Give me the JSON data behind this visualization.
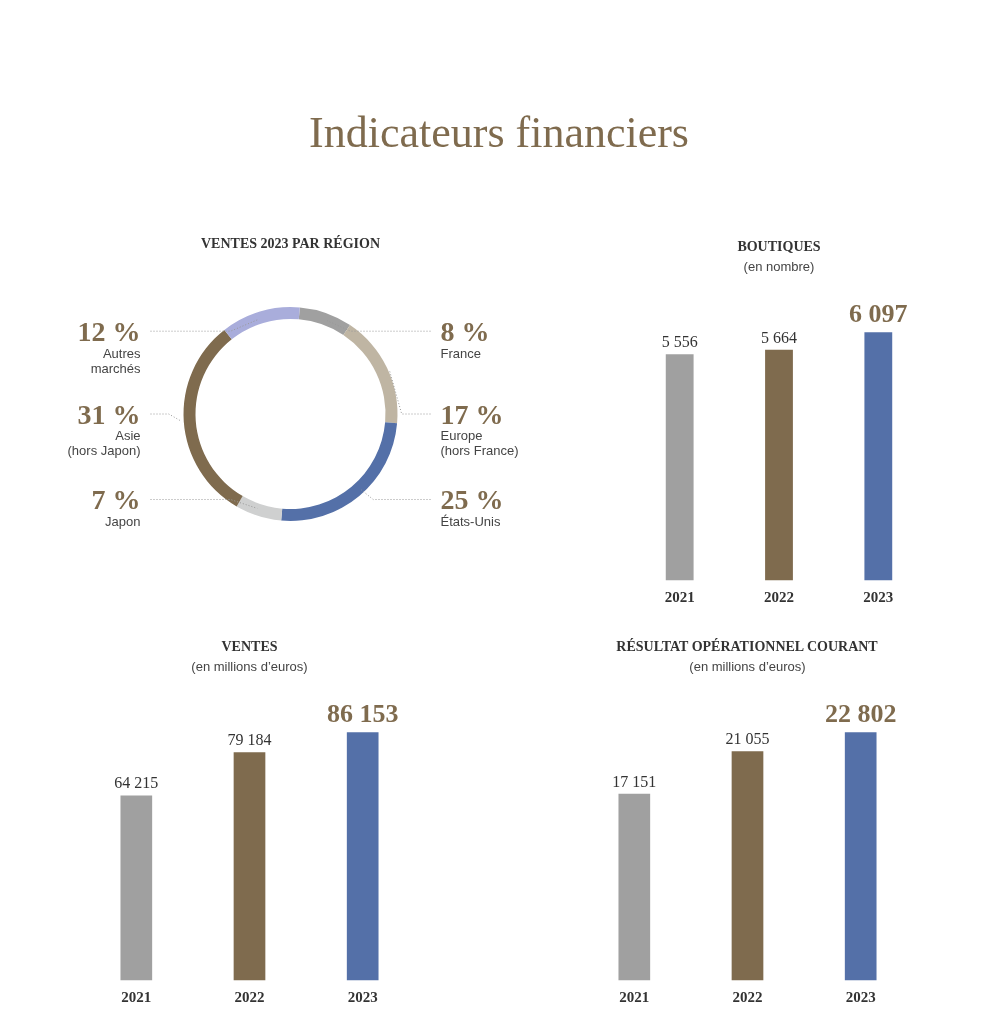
{
  "chart_data": [
    {
      "type": "other",
      "title": "Indicateurs financiers"
    },
    {
      "type": "donut",
      "title": "VENTES 2023 PAR RÉGION",
      "categories": [
        "France",
        "Europe\n(hors France)",
        "États-Unis",
        "Japon",
        "Asie\n(hors Japon)",
        "Autres\nmarchés"
      ],
      "values": [
        8,
        17,
        25,
        7,
        31,
        12
      ],
      "colors": [
        "#a0a0a0",
        "#bfb5a3",
        "#5470a8",
        "#cfd0d0",
        "#7f6b4e",
        "#a9addb"
      ],
      "value_labels": [
        "8 %",
        "17 %",
        "25 %",
        "7 %",
        "31 %",
        "12 %"
      ]
    },
    {
      "type": "bar",
      "title": "BOUTIQUES",
      "subtitle": "(en nombre)",
      "categories": [
        "2021",
        "2022",
        "2023"
      ],
      "values": [
        5556,
        5664,
        6097
      ],
      "colors": [
        "#a0a0a0",
        "#7f6b4e",
        "#5470a8"
      ],
      "value_labels": [
        "5 556",
        "5 664",
        "6 097"
      ]
    },
    {
      "type": "bar",
      "title": "VENTES",
      "subtitle": "(en millions d’euros)",
      "categories": [
        "2021",
        "2022",
        "2023"
      ],
      "values": [
        64215,
        79184,
        86153
      ],
      "colors": [
        "#a0a0a0",
        "#7f6b4e",
        "#5470a8"
      ],
      "value_labels": [
        "64 215",
        "79 184",
        "86 153"
      ]
    },
    {
      "type": "bar",
      "title": "RÉSULTAT OPÉRATIONNEL COURANT",
      "subtitle": "(en millions d’euros)",
      "categories": [
        "2021",
        "2022",
        "2023"
      ],
      "values": [
        17151,
        21055,
        22802
      ],
      "colors": [
        "#a0a0a0",
        "#7f6b4e",
        "#5470a8"
      ],
      "value_labels": [
        "17 151",
        "21 055",
        "22 802"
      ]
    }
  ]
}
